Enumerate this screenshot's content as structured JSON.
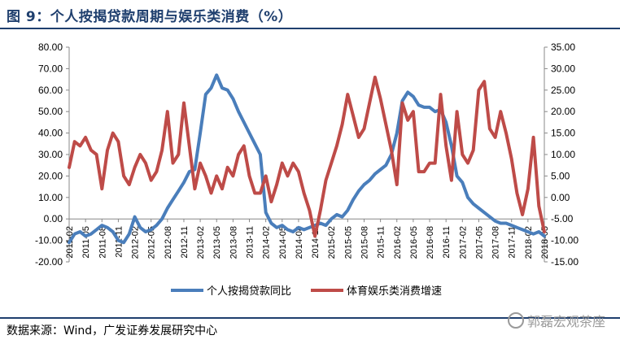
{
  "title": "图 9：个人按揭贷款周期与娱乐类消费（%）",
  "source": "数据来源：Wind，广发证券发展研究中心",
  "watermark": "郭磊宏观茶座",
  "colors": {
    "blue": "#4a7ebb",
    "red": "#be4b48",
    "title": "#1f3f6e"
  },
  "chart_data": {
    "type": "line",
    "x": [
      "2011-02",
      "2011-03",
      "2011-04",
      "2011-05",
      "2011-06",
      "2011-07",
      "2011-08",
      "2011-09",
      "2011-10",
      "2011-11",
      "2011-12",
      "2012-01",
      "2012-02",
      "2012-03",
      "2012-04",
      "2012-05",
      "2012-06",
      "2012-07",
      "2012-08",
      "2012-09",
      "2012-10",
      "2012-11",
      "2012-12",
      "2013-01",
      "2013-02",
      "2013-03",
      "2013-04",
      "2013-05",
      "2013-06",
      "2013-07",
      "2013-08",
      "2013-09",
      "2013-10",
      "2013-11",
      "2013-12",
      "2014-01",
      "2014-02",
      "2014-03",
      "2014-04",
      "2014-05",
      "2014-06",
      "2014-07",
      "2014-08",
      "2014-09",
      "2014-10",
      "2014-11",
      "2014-12",
      "2015-01",
      "2015-02",
      "2015-03",
      "2015-04",
      "2015-05",
      "2015-06",
      "2015-07",
      "2015-08",
      "2015-09",
      "2015-10",
      "2015-11",
      "2015-12",
      "2016-01",
      "2016-02",
      "2016-03",
      "2016-04",
      "2016-05",
      "2016-06",
      "2016-07",
      "2016-08",
      "2016-09",
      "2016-10",
      "2016-11",
      "2016-12",
      "2017-01",
      "2017-02",
      "2017-03",
      "2017-04",
      "2017-05",
      "2017-06",
      "2017-07",
      "2017-08",
      "2017-09",
      "2017-10",
      "2017-11",
      "2017-12",
      "2018-01",
      "2018-02",
      "2018-03",
      "2018-04",
      "2018-05"
    ],
    "x_tick_labels": [
      "2011-02",
      "2011-05",
      "2011-08",
      "2011-11",
      "2012-02",
      "2012-05",
      "2012-08",
      "2012-11",
      "2013-02",
      "2013-05",
      "2013-08",
      "2013-11",
      "2014-02",
      "2014-05",
      "2014-08",
      "2014-11",
      "2015-02",
      "2015-05",
      "2015-08",
      "2015-11",
      "2016-02",
      "2016-05",
      "2016-08",
      "2016-11",
      "2017-02",
      "2017-05",
      "2017-08",
      "2017-11",
      "2018-02",
      "2018-05"
    ],
    "y_left": {
      "ticks": [
        "80.00",
        "70.00",
        "60.00",
        "50.00",
        "40.00",
        "30.00",
        "20.00",
        "10.00",
        "0.00",
        "-10.00",
        "-20.00"
      ],
      "range": [
        -20,
        80
      ]
    },
    "y_right": {
      "ticks": [
        "35.00",
        "30.00",
        "25.00",
        "20.00",
        "15.00",
        "10.00",
        "5.00",
        "0.00",
        "-5.00",
        "-10.00",
        "-15.00"
      ],
      "range": [
        -15,
        35
      ]
    },
    "series": [
      {
        "name": "个人按揭贷款同比",
        "axis": "left",
        "color": "#4a7ebb",
        "values": [
          -11,
          -7,
          -6,
          -8,
          -7,
          -5,
          -3,
          -4,
          -6,
          -10,
          -11,
          -7,
          1,
          -4,
          -6,
          -5,
          -3,
          0,
          5,
          9,
          13,
          17,
          22,
          23,
          40,
          58,
          61,
          67,
          61,
          60,
          56,
          50,
          45,
          40,
          35,
          30,
          3,
          -2,
          -4,
          -3,
          -5,
          -6,
          -4,
          -5,
          -4,
          -3,
          -2,
          -3,
          0,
          2,
          1,
          4,
          9,
          13,
          16,
          18,
          21,
          23,
          25,
          30,
          40,
          55,
          59,
          57,
          53,
          52,
          52,
          50,
          51,
          45,
          34,
          20,
          17,
          10,
          7,
          5,
          3,
          1,
          -1,
          -2,
          -2,
          -3,
          -4,
          -5,
          -6,
          -7,
          -6,
          -8
        ]
      },
      {
        "name": "体育娱乐类消费增速",
        "axis": "right",
        "color": "#be4b48",
        "values": [
          7,
          13,
          12,
          14,
          11,
          10,
          2,
          11,
          15,
          13,
          5,
          3,
          7,
          10,
          8,
          4,
          6,
          11,
          20,
          8,
          10,
          22,
          12,
          2,
          8,
          5,
          1,
          5,
          2,
          7,
          5,
          10,
          12,
          5,
          1,
          1,
          5,
          -1,
          3,
          8,
          5,
          8,
          6,
          1,
          -3,
          -9,
          -3,
          4,
          8,
          12,
          17,
          24,
          19,
          14,
          16,
          22,
          28,
          23,
          17,
          11,
          3,
          22,
          18,
          20,
          6,
          6,
          8,
          8,
          24,
          12,
          4,
          20,
          10,
          8,
          11,
          25,
          27,
          16,
          14,
          20,
          15,
          9,
          1,
          -4,
          2,
          14,
          -2,
          -8
        ]
      }
    ],
    "grid": false,
    "legend": "bottom"
  }
}
